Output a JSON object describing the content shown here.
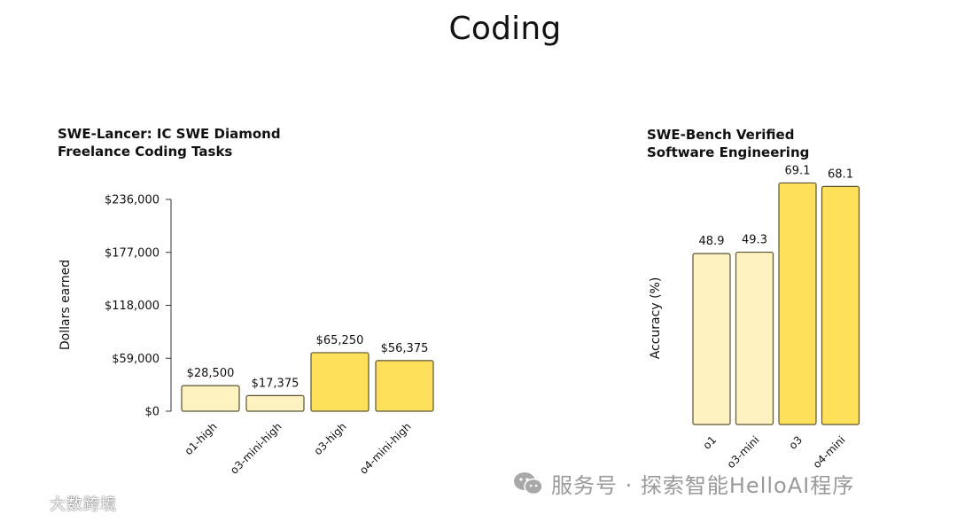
{
  "page_title": "Coding",
  "chart_data": [
    {
      "type": "bar",
      "title": [
        "SWE-Lancer: IC SWE Diamond",
        "Freelance Coding Tasks"
      ],
      "xlabel": "",
      "ylabel": "Dollars earned",
      "ylim": [
        0,
        236000
      ],
      "yticks": [
        0,
        59000,
        118000,
        177000,
        236000
      ],
      "ytick_labels": [
        "$0",
        "$59,000",
        "$118,000",
        "$177,000",
        "$236,000"
      ],
      "categories": [
        "o1-high",
        "o3-mini-high",
        "o3-high",
        "o4-mini-high"
      ],
      "values": [
        28500,
        17375,
        65250,
        56375
      ],
      "value_labels": [
        "$28,500",
        "$17,375",
        "$65,250",
        "$56,375"
      ],
      "colors": [
        "#fdf2c0",
        "#fdf2c0",
        "#ffe05a",
        "#ffe05a"
      ],
      "grid": false
    },
    {
      "type": "bar",
      "title": [
        "SWE-Bench Verified",
        "Software Engineering"
      ],
      "xlabel": "",
      "ylabel": "Accuracy (%)",
      "ylim": [
        0,
        72
      ],
      "categories": [
        "o1",
        "o3-mini",
        "o3",
        "o4-mini"
      ],
      "values": [
        48.9,
        49.3,
        69.1,
        68.1
      ],
      "value_labels": [
        "48.9",
        "49.3",
        "69.1",
        "68.1"
      ],
      "colors": [
        "#fdf2c0",
        "#fdf2c0",
        "#ffe05a",
        "#ffe05a"
      ],
      "grid": false
    }
  ],
  "watermarks": {
    "right": "服务号 · 探索智能HelloAI程序",
    "left": "大数跨境"
  },
  "colors": {
    "bar_stroke": "#5a5432",
    "axis": "#333333"
  }
}
